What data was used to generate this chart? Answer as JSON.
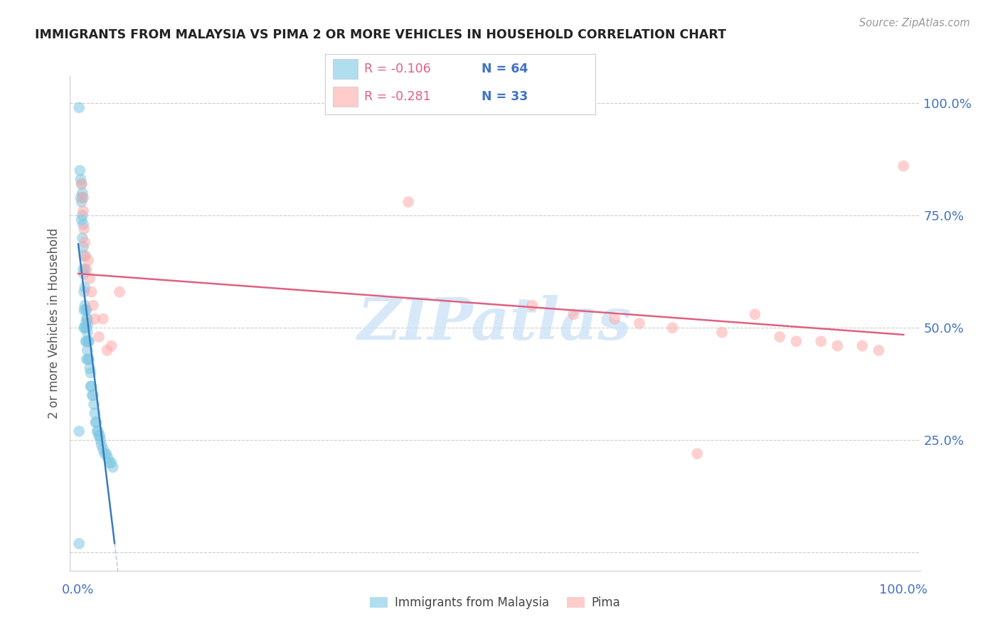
{
  "title": "IMMIGRANTS FROM MALAYSIA VS PIMA 2 OR MORE VEHICLES IN HOUSEHOLD CORRELATION CHART",
  "source": "Source: ZipAtlas.com",
  "ylabel": "2 or more Vehicles in Household",
  "legend_label1": "Immigrants from Malaysia",
  "legend_label2": "Pima",
  "r1": "-0.106",
  "n1": "64",
  "r2": "-0.281",
  "n2": "33",
  "blue_color": "#7ec8e3",
  "pink_color": "#ffaaaa",
  "blue_line_color": "#3a7abd",
  "pink_line_color": "#e06080",
  "axis_label_color": "#4472c4",
  "background_color": "#ffffff",
  "watermark_color": "#d0e4f7",
  "blue_x": [
    0.001,
    0.002,
    0.003,
    0.003,
    0.004,
    0.004,
    0.004,
    0.005,
    0.005,
    0.005,
    0.006,
    0.006,
    0.006,
    0.006,
    0.007,
    0.007,
    0.007,
    0.007,
    0.007,
    0.008,
    0.008,
    0.008,
    0.008,
    0.009,
    0.009,
    0.009,
    0.01,
    0.01,
    0.01,
    0.01,
    0.01,
    0.011,
    0.011,
    0.011,
    0.012,
    0.012,
    0.012,
    0.013,
    0.013,
    0.014,
    0.015,
    0.015,
    0.016,
    0.017,
    0.018,
    0.019,
    0.02,
    0.021,
    0.022,
    0.023,
    0.024,
    0.025,
    0.026,
    0.027,
    0.028,
    0.03,
    0.032,
    0.034,
    0.036,
    0.038,
    0.04,
    0.042,
    0.001,
    0.001
  ],
  "blue_y": [
    0.99,
    0.85,
    0.83,
    0.79,
    0.82,
    0.78,
    0.74,
    0.8,
    0.75,
    0.7,
    0.79,
    0.73,
    0.68,
    0.63,
    0.66,
    0.62,
    0.58,
    0.54,
    0.5,
    0.63,
    0.59,
    0.55,
    0.5,
    0.54,
    0.51,
    0.47,
    0.54,
    0.52,
    0.5,
    0.47,
    0.43,
    0.52,
    0.49,
    0.45,
    0.51,
    0.47,
    0.43,
    0.47,
    0.43,
    0.41,
    0.4,
    0.37,
    0.37,
    0.35,
    0.35,
    0.33,
    0.31,
    0.29,
    0.29,
    0.27,
    0.27,
    0.26,
    0.26,
    0.25,
    0.24,
    0.23,
    0.22,
    0.22,
    0.21,
    0.2,
    0.2,
    0.19,
    0.27,
    0.02
  ],
  "pink_x": [
    0.004,
    0.005,
    0.006,
    0.007,
    0.008,
    0.009,
    0.01,
    0.012,
    0.014,
    0.016,
    0.018,
    0.02,
    0.025,
    0.03,
    0.035,
    0.04,
    0.05,
    0.4,
    0.55,
    0.6,
    0.65,
    0.68,
    0.72,
    0.75,
    0.78,
    0.82,
    0.85,
    0.87,
    0.9,
    0.92,
    0.95,
    0.97,
    1.0
  ],
  "pink_y": [
    0.82,
    0.79,
    0.76,
    0.72,
    0.69,
    0.66,
    0.63,
    0.65,
    0.61,
    0.58,
    0.55,
    0.52,
    0.48,
    0.52,
    0.45,
    0.46,
    0.58,
    0.78,
    0.55,
    0.53,
    0.52,
    0.51,
    0.5,
    0.22,
    0.49,
    0.53,
    0.48,
    0.47,
    0.47,
    0.46,
    0.46,
    0.45,
    0.86
  ]
}
